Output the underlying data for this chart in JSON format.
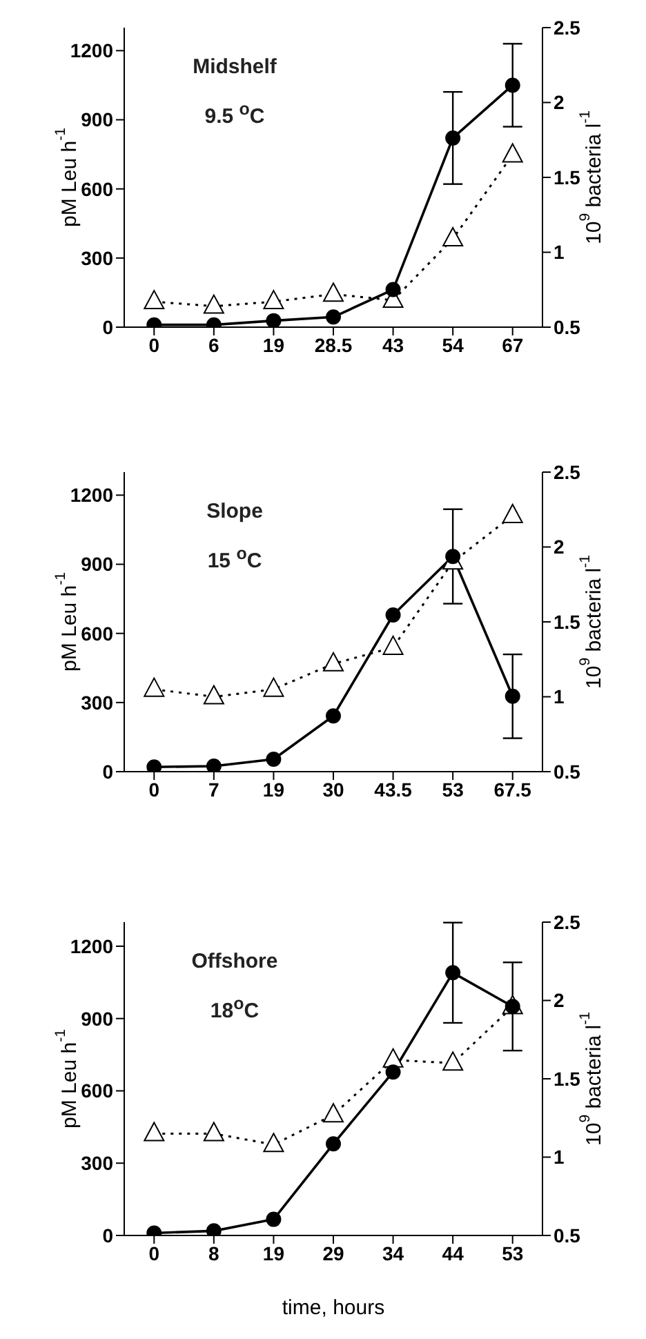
{
  "chart_data": [
    {
      "type": "line",
      "annotations": [
        "Midshelf",
        "9.5 $^{o}$C"
      ],
      "ylabel": "pM Leu h$^{-1}$",
      "y2label": "10$^{9}$ bacteria  l$^{-1}$",
      "categories": [
        "0",
        "6",
        "19",
        "28.5",
        "43",
        "54",
        "67"
      ],
      "ylim": [
        0,
        1300
      ],
      "yticks": [
        0,
        300,
        600,
        900,
        1200
      ],
      "y2lim": [
        0.5,
        2.5
      ],
      "y2ticks": [
        0.5,
        1,
        1.5,
        2,
        2.5
      ],
      "grid": false,
      "legend": false,
      "series": [
        {
          "color": "#000000",
          "marker": "circle",
          "line_style": "solid",
          "values": [
            10,
            10,
            28,
            44,
            163,
            821,
            1050
          ],
          "errors": [
            null,
            null,
            null,
            null,
            null,
            200,
            180
          ]
        },
        {
          "color": "#000000",
          "marker": "triangle",
          "line_style": "dotted",
          "axis": "y2",
          "values": [
            0.67,
            0.64,
            0.67,
            0.72,
            0.68,
            1.09,
            1.65
          ]
        }
      ]
    },
    {
      "type": "line",
      "annotations": [
        "Slope",
        "15 $^{o}$C"
      ],
      "ylabel": "pM Leu h$^{-1}$",
      "y2label": "10$^{9}$ bacteria  l$^{-1}$",
      "categories": [
        "0",
        "7",
        "19",
        "30",
        "43.5",
        "53",
        "67.5"
      ],
      "ylim": [
        0,
        1300
      ],
      "yticks": [
        0,
        300,
        600,
        900,
        1200
      ],
      "y2lim": [
        0.5,
        2.5
      ],
      "y2ticks": [
        0.5,
        1,
        1.5,
        2,
        2.5
      ],
      "grid": false,
      "legend": false,
      "series": [
        {
          "color": "#000000",
          "marker": "circle",
          "line_style": "solid",
          "values": [
            20,
            24,
            54,
            242,
            680,
            934,
            327
          ],
          "errors": [
            null,
            null,
            null,
            null,
            null,
            205,
            182
          ]
        },
        {
          "color": "#000000",
          "marker": "triangle",
          "line_style": "dotted",
          "axis": "y2",
          "values": [
            1.05,
            1.0,
            1.05,
            1.22,
            1.33,
            1.9,
            2.21
          ]
        }
      ]
    },
    {
      "type": "line",
      "annotations": [
        "Offshore",
        "18$^{o}$C"
      ],
      "xlabel": "time, hours",
      "ylabel": "pM Leu h$^{-1}$",
      "y2label": "10$^{9}$ bacteria  l$^{-1}$",
      "categories": [
        "0",
        "8",
        "19",
        "29",
        "34",
        "44",
        "53"
      ],
      "ylim": [
        0,
        1300
      ],
      "yticks": [
        0,
        300,
        600,
        900,
        1200
      ],
      "y2lim": [
        0.5,
        2.5
      ],
      "y2ticks": [
        0.5,
        1,
        1.5,
        2,
        2.5
      ],
      "grid": false,
      "legend": false,
      "series": [
        {
          "color": "#000000",
          "marker": "circle",
          "line_style": "solid",
          "values": [
            10,
            19,
            67,
            380,
            678,
            1090,
            950
          ],
          "errors": [
            null,
            null,
            null,
            null,
            null,
            208,
            183
          ]
        },
        {
          "color": "#000000",
          "marker": "triangle",
          "line_style": "dotted",
          "axis": "y2",
          "values": [
            1.15,
            1.15,
            1.08,
            1.27,
            1.62,
            1.6,
            1.96
          ]
        }
      ]
    }
  ]
}
